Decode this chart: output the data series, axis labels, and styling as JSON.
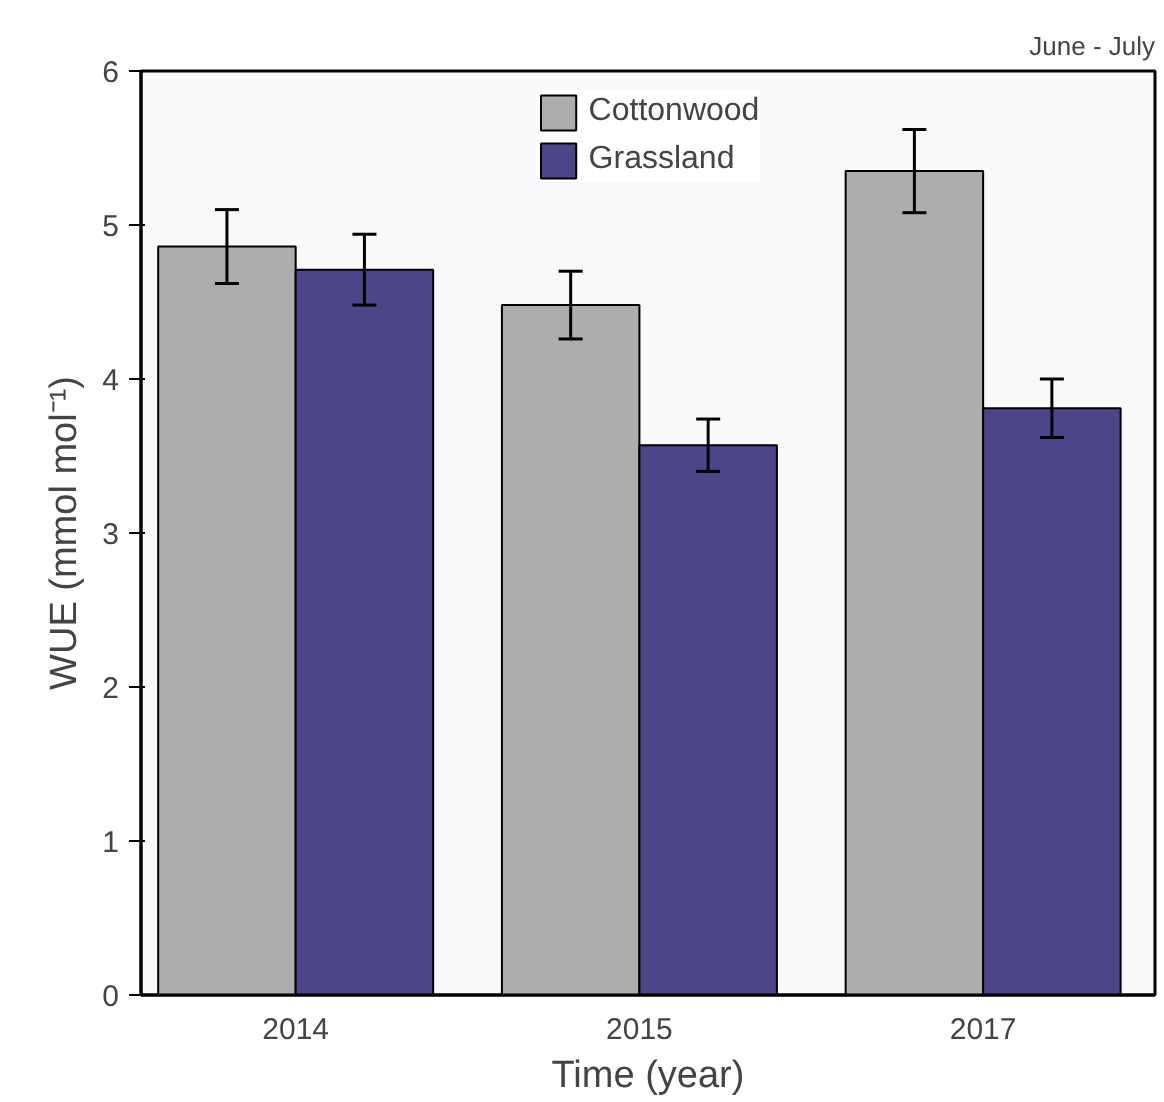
{
  "chart_data": {
    "type": "bar",
    "title": "June - July",
    "xlabel": "Time (year)",
    "ylabel": "WUE (mmol mol⁻¹)",
    "categories": [
      "2014",
      "2015",
      "2017"
    ],
    "series": [
      {
        "name": "Cottonwood",
        "color": "#adadad",
        "values": [
          4.86,
          4.48,
          5.35
        ],
        "errors": [
          0.24,
          0.22,
          0.27
        ]
      },
      {
        "name": "Grassland",
        "color": "#4c4587",
        "values": [
          4.71,
          3.57,
          3.81
        ],
        "errors": [
          0.23,
          0.17,
          0.19
        ]
      }
    ],
    "ylim": [
      0,
      6
    ],
    "yticks": [
      0,
      1,
      2,
      3,
      4,
      5,
      6
    ],
    "grid": false,
    "legend": "top"
  }
}
